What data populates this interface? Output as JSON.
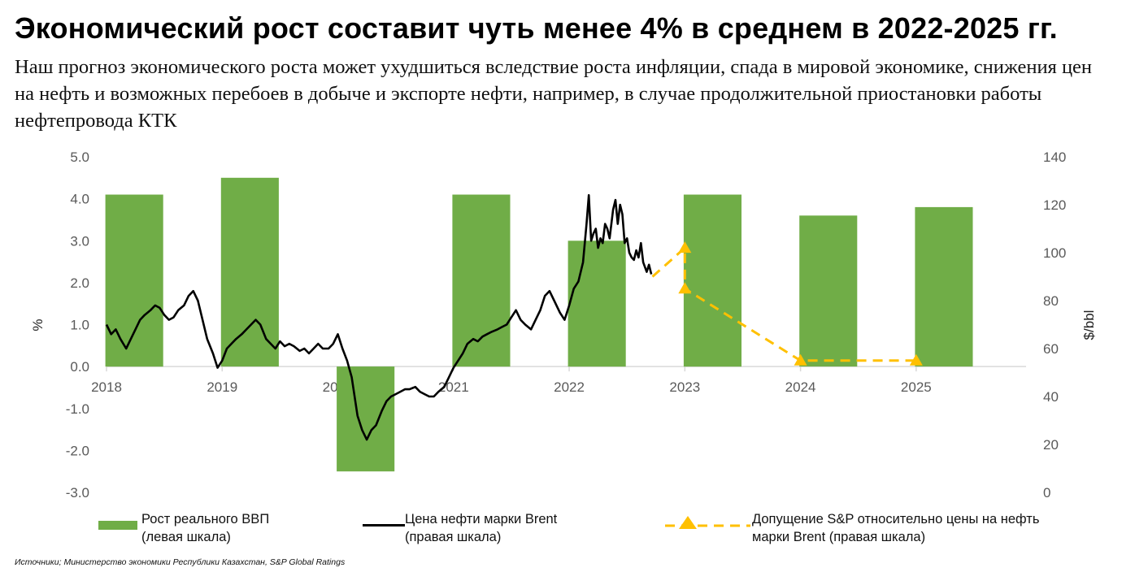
{
  "title": "Экономический рост составит чуть менее 4% в среднем в 2022-2025 гг.",
  "subtitle": "Наш прогноз экономического роста может ухудшиться вследствие роста инфляции, спада в мировой экономике, снижения цен на нефть и возможных перебоев в добыче и экспорте нефти, например, в случае продолжительной приостановки работы нефтепровода КТК",
  "source": "Источники; Министерство экономики Республики Казахстан, S&P Global Ratings",
  "legend": {
    "gdp_line1": "Рост реального ВВП",
    "gdp_line2": "(левая шкала)",
    "brent_line1": "Цена нефти марки Brent",
    "brent_line2": "(правая шкала)",
    "assump_line1": "Допущение S&P относительно цены на нефть",
    "assump_line2": "марки Brent (правая шкала)"
  },
  "colors": {
    "gdp_bar": "#70ad47",
    "brent_line": "#000000",
    "assumption": "#ffc000",
    "axis_text": "#595959",
    "axis_line": "#d9d9d9"
  },
  "chart_data": {
    "type": "bar+line",
    "title": "",
    "ylabel_left": "%",
    "ylabel_right": "$/bbl",
    "ylim_left": [
      -3.0,
      5.0
    ],
    "ylim_right": [
      0,
      140
    ],
    "left_ticks": [
      "-3.0",
      "-2.0",
      "-1.0",
      "0.0",
      "1.0",
      "2.0",
      "3.0",
      "4.0",
      "5.0"
    ],
    "right_ticks": [
      "0",
      "20",
      "40",
      "60",
      "80",
      "100",
      "120",
      "140"
    ],
    "x_ticks": [
      "2018",
      "2019",
      "2020",
      "2021",
      "2022",
      "2023",
      "2024",
      "2025"
    ],
    "xlim": [
      2018.0,
      2025.95
    ],
    "grid": false,
    "legend_position": "bottom",
    "series": [
      {
        "name": "Рост реального ВВП (левая шкала)",
        "type": "bar",
        "x": [
          2018,
          2019,
          2020,
          2021,
          2022,
          2023,
          2024,
          2025
        ],
        "values": [
          4.1,
          4.5,
          -2.5,
          4.1,
          3.0,
          4.1,
          3.6,
          3.8
        ]
      },
      {
        "name": "Цена нефти марки Brent (правая шкала)",
        "type": "line",
        "x": [
          2018.0,
          2018.04,
          2018.08,
          2018.12,
          2018.17,
          2018.21,
          2018.25,
          2018.29,
          2018.33,
          2018.38,
          2018.42,
          2018.46,
          2018.5,
          2018.54,
          2018.58,
          2018.62,
          2018.67,
          2018.71,
          2018.75,
          2018.79,
          2018.83,
          2018.87,
          2018.92,
          2018.96,
          2019.0,
          2019.04,
          2019.08,
          2019.12,
          2019.17,
          2019.21,
          2019.25,
          2019.29,
          2019.33,
          2019.38,
          2019.42,
          2019.46,
          2019.5,
          2019.54,
          2019.58,
          2019.62,
          2019.67,
          2019.71,
          2019.75,
          2019.79,
          2019.83,
          2019.87,
          2019.92,
          2019.96,
          2020.0,
          2020.04,
          2020.08,
          2020.12,
          2020.17,
          2020.21,
          2020.25,
          2020.29,
          2020.33,
          2020.38,
          2020.42,
          2020.46,
          2020.5,
          2020.54,
          2020.58,
          2020.62,
          2020.67,
          2020.71,
          2020.75,
          2020.79,
          2020.83,
          2020.87,
          2020.92,
          2020.96,
          2021.0,
          2021.04,
          2021.08,
          2021.12,
          2021.17,
          2021.21,
          2021.25,
          2021.29,
          2021.33,
          2021.38,
          2021.42,
          2021.46,
          2021.5,
          2021.54,
          2021.58,
          2021.62,
          2021.67,
          2021.71,
          2021.75,
          2021.79,
          2021.83,
          2021.87,
          2021.92,
          2021.96,
          2022.0,
          2022.04,
          2022.08,
          2022.12,
          2022.15,
          2022.17,
          2022.19,
          2022.21,
          2022.23,
          2022.25,
          2022.27,
          2022.29,
          2022.31,
          2022.33,
          2022.35,
          2022.38,
          2022.4,
          2022.42,
          2022.44,
          2022.46,
          2022.48,
          2022.5,
          2022.52,
          2022.54,
          2022.56,
          2022.58,
          2022.6,
          2022.62,
          2022.64,
          2022.67,
          2022.69,
          2022.71
        ],
        "values": [
          70,
          66,
          68,
          64,
          60,
          64,
          68,
          72,
          74,
          76,
          78,
          77,
          74,
          72,
          73,
          76,
          78,
          82,
          84,
          80,
          72,
          64,
          58,
          52,
          55,
          60,
          62,
          64,
          66,
          68,
          70,
          72,
          70,
          64,
          62,
          60,
          63,
          61,
          62,
          61,
          59,
          60,
          58,
          60,
          62,
          60,
          60,
          62,
          66,
          60,
          55,
          48,
          32,
          26,
          22,
          26,
          28,
          34,
          38,
          40,
          41,
          42,
          43,
          43,
          44,
          42,
          41,
          40,
          40,
          42,
          44,
          48,
          52,
          55,
          58,
          62,
          64,
          63,
          65,
          66,
          67,
          68,
          69,
          70,
          73,
          76,
          72,
          70,
          68,
          72,
          76,
          82,
          84,
          80,
          75,
          72,
          78,
          85,
          88,
          96,
          112,
          124,
          105,
          108,
          110,
          102,
          106,
          104,
          112,
          110,
          106,
          118,
          122,
          112,
          120,
          116,
          104,
          106,
          100,
          98,
          97,
          101,
          98,
          104,
          96,
          92,
          95,
          91
        ]
      },
      {
        "name": "Допущение S&P относительно цены на нефть марки Brent (правая шкала)",
        "type": "line",
        "style": "dashed",
        "x": [
          2022.72,
          2023.0,
          2023.0,
          2024.0,
          2024.5,
          2025.0
        ],
        "values": [
          90,
          102,
          85,
          55,
          55,
          55
        ],
        "markers": [
          2023.0,
          2023.0,
          2024.0,
          2025.0
        ]
      }
    ]
  }
}
